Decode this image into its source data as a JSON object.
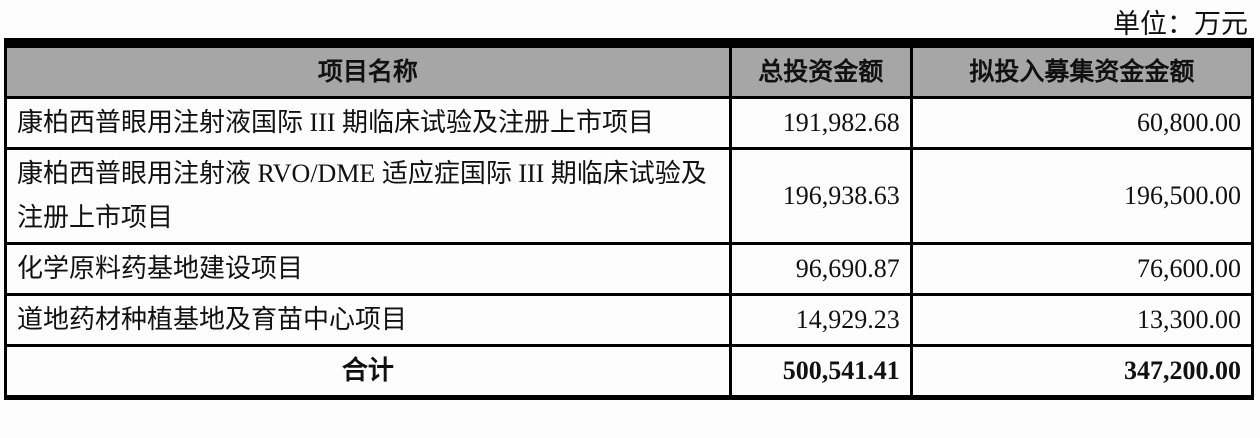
{
  "unit_label": "单位：万元",
  "table": {
    "headers": [
      "项目名称",
      "总投资金额",
      "拟投入募集资金金额"
    ],
    "rows": [
      {
        "name": "康柏西普眼用注射液国际 III 期临床试验及注册上市项目",
        "total": "191,982.68",
        "raised": "60,800.00"
      },
      {
        "name": "康柏西普眼用注射液 RVO/DME 适应症国际 III 期临床试验及注册上市项目",
        "total": "196,938.63",
        "raised": "196,500.00"
      },
      {
        "name": "化学原料药基地建设项目",
        "total": "96,690.87",
        "raised": "76,600.00"
      },
      {
        "name": "道地药材种植基地及育苗中心项目",
        "total": "14,929.23",
        "raised": "13,300.00"
      }
    ],
    "total_row": {
      "name": "合计",
      "total": "500,541.41",
      "raised": "347,200.00"
    }
  }
}
